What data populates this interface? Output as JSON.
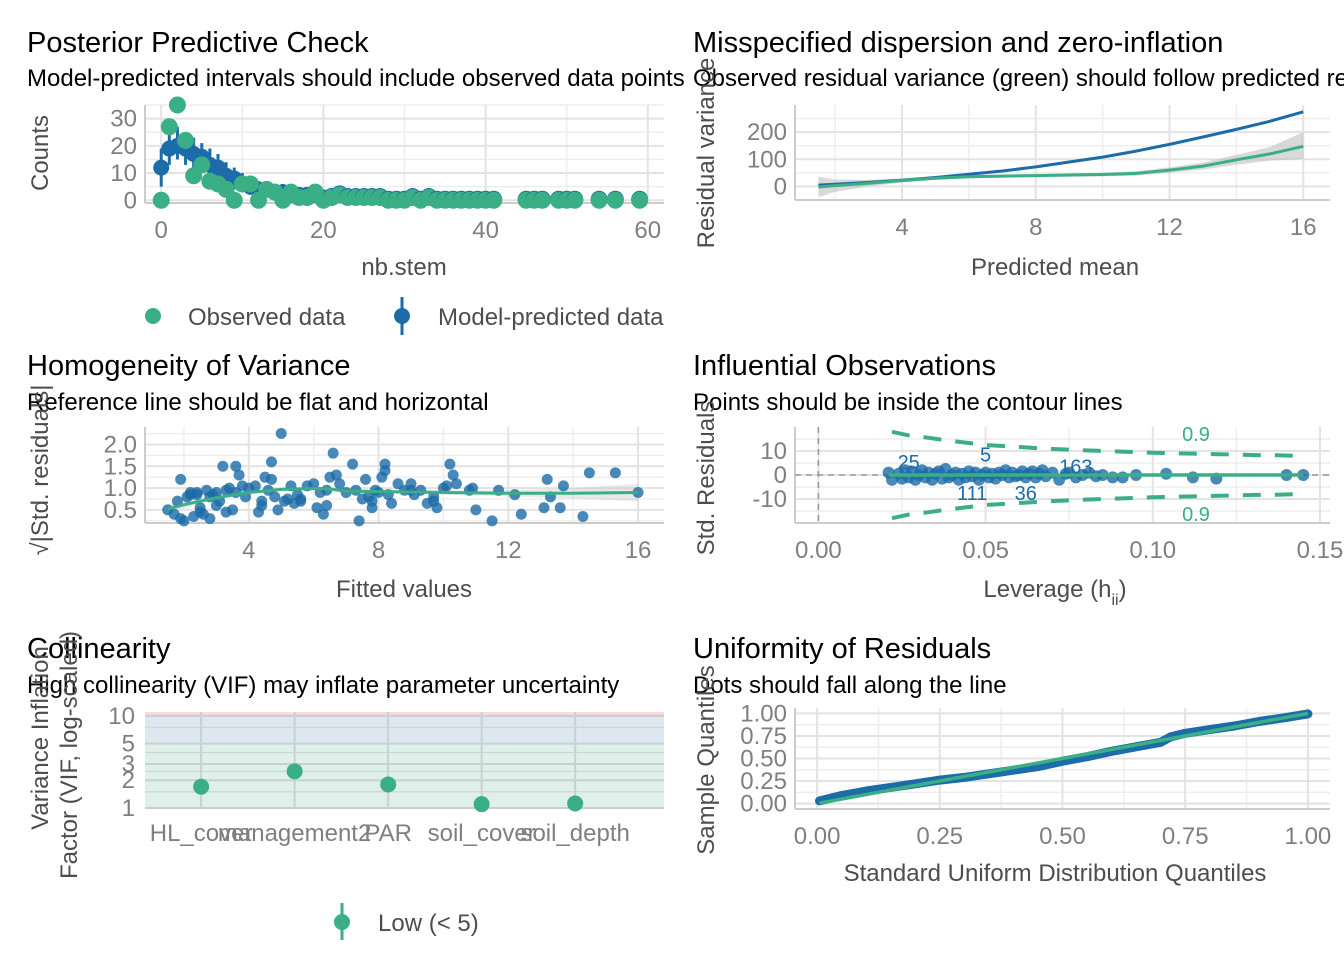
{
  "colors": {
    "green": "#3aaf85",
    "blue": "#1b6ca8",
    "band": "#bfbfbf",
    "vif_low": "#dff0e9",
    "vif_mod": "#dde7f0",
    "vif_high": "#f8dcdc"
  },
  "chart_data": [
    {
      "id": "ppc",
      "type": "scatter",
      "title": "Posterior Predictive Check",
      "subtitle": "Model-predicted intervals should include observed data points",
      "xlabel": "nb.stem",
      "ylabel": "Counts",
      "xlim": [
        -2,
        62
      ],
      "ylim": [
        -1,
        35
      ],
      "xticks": [
        0,
        20,
        40,
        60
      ],
      "yticks": [
        0,
        10,
        20,
        30
      ],
      "grid": true,
      "legend": {
        "position": "bottom",
        "entries": [
          "Observed data",
          "Model-predicted data"
        ]
      },
      "observed": {
        "x": [
          0,
          1,
          2,
          3,
          4,
          5,
          6,
          7,
          8,
          9,
          10,
          11,
          12,
          13,
          14,
          15,
          16,
          17,
          18,
          19,
          20,
          21,
          22,
          23,
          24,
          25,
          26,
          27,
          28,
          29,
          30,
          31,
          32,
          33,
          34,
          35,
          36,
          37,
          38,
          39,
          40,
          41,
          45,
          46,
          47,
          49,
          50,
          51,
          54,
          56,
          59
        ],
        "y": [
          0,
          27,
          35,
          22,
          9,
          13,
          7,
          6,
          4,
          0,
          6,
          6,
          0,
          4,
          3,
          0,
          3,
          1,
          1,
          3,
          0,
          1,
          2,
          1,
          1,
          1,
          1,
          1,
          0,
          0,
          0,
          1,
          0,
          1,
          0,
          0,
          0,
          0,
          0,
          0,
          0,
          0,
          0,
          0,
          0,
          0,
          0,
          0,
          0,
          0,
          0
        ]
      },
      "predicted": {
        "x": [
          0,
          1,
          2,
          3,
          4,
          5,
          6,
          7,
          8,
          9,
          10,
          11,
          12,
          13,
          14,
          15,
          16,
          17,
          18,
          19,
          20
        ],
        "y": [
          12,
          19,
          20,
          19,
          17,
          16,
          13,
          12,
          9,
          8,
          6,
          5,
          4,
          4,
          3,
          3,
          2,
          2,
          2,
          2,
          1
        ],
        "low": [
          5,
          13,
          15,
          13,
          12,
          11,
          8,
          8,
          5,
          4,
          3,
          2,
          2,
          1,
          1,
          1,
          0,
          0,
          0,
          0,
          0
        ],
        "high": [
          19,
          26,
          27,
          25,
          23,
          21,
          19,
          17,
          14,
          12,
          10,
          9,
          7,
          7,
          6,
          6,
          5,
          4,
          4,
          4,
          3
        ]
      }
    },
    {
      "id": "overdispersion",
      "type": "line",
      "title": "Misspecified dispersion and zero-inflation",
      "subtitle": "Observed residual variance (green) should follow predicted residual variance (blue)",
      "xlabel": "Predicted mean",
      "ylabel": "Residual variance",
      "xlim": [
        0.8,
        16.8
      ],
      "ylim": [
        -50,
        300
      ],
      "xticks": [
        4,
        8,
        12,
        16
      ],
      "yticks": [
        0,
        100,
        200
      ],
      "grid": true,
      "series": [
        {
          "name": "Predicted residual variance",
          "color": "blue",
          "x": [
            1.5,
            2,
            3,
            4,
            5,
            6,
            7,
            8,
            9,
            10,
            11,
            12,
            13,
            14,
            15,
            16
          ],
          "y": [
            5,
            8,
            15,
            23,
            33,
            45,
            57,
            72,
            90,
            108,
            130,
            155,
            182,
            210,
            240,
            275
          ]
        },
        {
          "name": "Observed residual variance",
          "color": "green",
          "x": [
            1.5,
            2,
            3,
            4,
            5,
            6,
            7,
            8,
            9,
            10,
            11,
            12,
            13,
            14,
            15,
            16
          ],
          "y": [
            -2,
            3,
            12,
            22,
            30,
            36,
            38,
            40,
            42,
            44,
            48,
            60,
            75,
            98,
            120,
            148
          ],
          "ci_low": [
            -40,
            -20,
            0,
            14,
            24,
            30,
            32,
            34,
            36,
            37,
            40,
            50,
            62,
            80,
            95,
            100
          ],
          "ci_high": [
            36,
            26,
            24,
            30,
            36,
            42,
            44,
            46,
            48,
            51,
            56,
            70,
            88,
            116,
            145,
            200
          ]
        }
      ]
    },
    {
      "id": "homogeneity",
      "type": "scatter",
      "title": "Homogeneity of Variance",
      "subtitle": "Reference line should be flat and horizontal",
      "xlabel": "Fitted values",
      "ylabel": "√|Std. residuals|",
      "xlim": [
        0.8,
        16.8
      ],
      "ylim": [
        0.2,
        2.4
      ],
      "xticks": [
        4,
        8,
        12,
        16
      ],
      "yticks": [
        0.5,
        1.0,
        1.5,
        2.0
      ],
      "ytick_labels": [
        "0.5",
        "1.0",
        "1.5",
        "2.0"
      ],
      "grid": true,
      "points": {
        "x": [
          1.5,
          1.7,
          1.8,
          1.9,
          2.0,
          2.1,
          2.2,
          2.3,
          2.4,
          2.5,
          2.6,
          2.7,
          2.8,
          2.9,
          3.0,
          3.1,
          3.2,
          3.3,
          3.4,
          3.5,
          3.6,
          3.7,
          3.8,
          3.9,
          4.0,
          4.2,
          4.3,
          4.4,
          4.5,
          4.6,
          4.7,
          4.8,
          4.9,
          5.0,
          5.1,
          5.3,
          5.4,
          5.5,
          5.6,
          5.8,
          6.0,
          6.1,
          6.2,
          6.3,
          6.4,
          6.5,
          6.6,
          6.8,
          7.0,
          7.2,
          7.3,
          7.4,
          7.6,
          7.7,
          7.8,
          7.9,
          8.0,
          8.1,
          8.2,
          8.3,
          8.4,
          8.6,
          8.8,
          9.0,
          9.1,
          9.3,
          9.5,
          9.7,
          9.8,
          10.0,
          10.1,
          10.2,
          10.3,
          10.4,
          10.8,
          10.9,
          11.0,
          11.5,
          11.7,
          12.2,
          12.4,
          13.1,
          13.2,
          13.3,
          13.6,
          13.7,
          14.3,
          14.5,
          15.3,
          16.0,
          2.2,
          2.8,
          3.0,
          3.6,
          4.4,
          4.7,
          5.6,
          6.7,
          7.8,
          8.2,
          9.0,
          9.7,
          2.5,
          1.9,
          2.4,
          3.3,
          5.2,
          6.4,
          7.5
        ],
        "y": [
          0.5,
          0.4,
          0.7,
          0.3,
          0.25,
          0.8,
          0.85,
          0.35,
          0.9,
          0.55,
          0.4,
          0.95,
          0.3,
          0.85,
          0.9,
          0.7,
          1.5,
          0.95,
          1.0,
          0.5,
          1.5,
          1.3,
          1.05,
          0.8,
          1.0,
          1.05,
          0.45,
          0.7,
          1.25,
          0.95,
          1.6,
          0.8,
          0.5,
          2.25,
          0.7,
          1.05,
          0.65,
          0.85,
          0.75,
          1.05,
          1.1,
          0.55,
          0.9,
          0.4,
          0.6,
          1.25,
          1.8,
          1.1,
          0.9,
          1.55,
          0.95,
          0.25,
          1.2,
          0.8,
          0.7,
          0.95,
          0.9,
          1.25,
          1.55,
          0.85,
          0.65,
          1.1,
          0.95,
          1.1,
          0.85,
          0.95,
          0.65,
          0.8,
          0.55,
          1.0,
          1.05,
          1.55,
          1.3,
          1.1,
          0.95,
          1.0,
          0.5,
          0.25,
          0.95,
          0.85,
          0.4,
          0.55,
          1.2,
          0.8,
          0.55,
          1.05,
          0.35,
          1.35,
          1.35,
          0.9,
          0.9,
          0.8,
          0.6,
          0.9,
          0.6,
          1.2,
          0.7,
          1.3,
          0.55,
          1.4,
          0.95,
          0.7,
          0.45,
          1.2,
          0.85,
          0.45,
          0.75,
          0.95,
          0.75
        ]
      },
      "smooth": {
        "x": [
          1.5,
          2,
          3,
          4,
          5,
          6,
          6.5,
          7,
          8,
          9,
          10,
          11,
          12,
          13,
          14,
          15,
          16
        ],
        "y": [
          0.52,
          0.62,
          0.78,
          0.9,
          0.97,
          0.99,
          0.98,
          0.93,
          0.92,
          0.91,
          0.9,
          0.89,
          0.88,
          0.88,
          0.88,
          0.89,
          0.9
        ],
        "ci_low": [
          0.4,
          0.55,
          0.72,
          0.85,
          0.93,
          0.95,
          0.94,
          0.88,
          0.87,
          0.86,
          0.85,
          0.83,
          0.81,
          0.79,
          0.76,
          0.73,
          0.7
        ],
        "ci_high": [
          0.64,
          0.69,
          0.84,
          0.95,
          1.01,
          1.03,
          1.02,
          0.98,
          0.97,
          0.96,
          0.95,
          0.95,
          0.95,
          0.97,
          1.0,
          1.05,
          1.1
        ]
      }
    },
    {
      "id": "influential",
      "type": "scatter",
      "title": "Influential Observations",
      "subtitle": "Points should be inside the contour lines",
      "xlabel": "Leverage (h",
      "xlabel_sub": "ii",
      "xlabel_end": ")",
      "ylabel": "Std. Residuals",
      "xlim": [
        -0.007,
        0.153
      ],
      "ylim": [
        -20,
        20
      ],
      "xticks": [
        0.0,
        0.05,
        0.1,
        0.15
      ],
      "xtick_labels": [
        "0.00",
        "0.05",
        "0.10",
        "0.15"
      ],
      "yticks": [
        -10,
        0,
        10
      ],
      "grid": true,
      "contour_label": "0.9",
      "contour": {
        "x": [
          0.022,
          0.027,
          0.033,
          0.038,
          0.044,
          0.05,
          0.056,
          0.062,
          0.068,
          0.075,
          0.081,
          0.087,
          0.094,
          0.1,
          0.106,
          0.112,
          0.118,
          0.125,
          0.131,
          0.137,
          0.143
        ],
        "upper": [
          18,
          16.5,
          15.5,
          14.5,
          13.5,
          12.5,
          12,
          11.5,
          11,
          10.6,
          10.2,
          9.9,
          9.6,
          9.3,
          9.1,
          8.9,
          8.7,
          8.5,
          8.3,
          8.2,
          8.0
        ]
      },
      "points": {
        "x": [
          0.021,
          0.022,
          0.024,
          0.025,
          0.026,
          0.027,
          0.028,
          0.029,
          0.03,
          0.031,
          0.032,
          0.033,
          0.034,
          0.035,
          0.036,
          0.037,
          0.038,
          0.039,
          0.04,
          0.041,
          0.042,
          0.043,
          0.044,
          0.045,
          0.046,
          0.047,
          0.048,
          0.049,
          0.05,
          0.051,
          0.052,
          0.053,
          0.054,
          0.055,
          0.056,
          0.057,
          0.058,
          0.059,
          0.06,
          0.061,
          0.062,
          0.063,
          0.064,
          0.065,
          0.066,
          0.067,
          0.068,
          0.07,
          0.072,
          0.074,
          0.075,
          0.077,
          0.079,
          0.081,
          0.083,
          0.085,
          0.088,
          0.091,
          0.095,
          0.104,
          0.112,
          0.119,
          0.14,
          0.145
        ],
        "y": [
          1,
          -2,
          0.5,
          -1.5,
          2,
          -1,
          1.5,
          -2,
          0,
          2,
          -1,
          1,
          -2,
          0.5,
          1.5,
          -1.5,
          2.5,
          -1,
          0,
          1,
          -2,
          0.5,
          -1,
          1.5,
          -0.5,
          1,
          -2,
          0,
          1,
          -1,
          0.5,
          -1.5,
          1,
          0,
          2,
          -1,
          1,
          -0.5,
          0,
          1.5,
          -1,
          0.5,
          1.5,
          -1,
          0.5,
          2,
          -0.5,
          1,
          -2,
          0.5,
          1,
          -1,
          0,
          1,
          -0.5,
          0,
          -1,
          -1,
          0,
          0.5,
          -1,
          -1.5,
          0,
          0
        ],
        "labels": [
          {
            "text": "25",
            "x": 0.027,
            "y": 5.5
          },
          {
            "text": "5",
            "x": 0.05,
            "y": 8.5
          },
          {
            "text": "163",
            "x": 0.077,
            "y": 3.5
          },
          {
            "text": "111",
            "x": 0.046,
            "y": -7.5
          },
          {
            "text": "36",
            "x": 0.062,
            "y": -7.5
          }
        ]
      },
      "smooth": {
        "x": [
          0.021,
          0.145
        ],
        "y": [
          0,
          0
        ]
      }
    },
    {
      "id": "collinearity",
      "type": "scatter",
      "title": "Collinearity",
      "subtitle": "High collinearity (VIF) may inflate parameter uncertainty",
      "xlabel": "",
      "ylabel": "Variance Inflation",
      "ylabel2": "Factor (VIF, log-scaled)",
      "ylim_log": [
        1,
        11
      ],
      "yticks": [
        1,
        2,
        3,
        5,
        10
      ],
      "ytick_labels": [
        "1",
        "2",
        "3",
        "5",
        "10"
      ],
      "categories": [
        "HL_cover",
        "management2",
        "PAR",
        "soil_cover",
        "soil_depth"
      ],
      "values": [
        1.7,
        2.5,
        1.8,
        1.1,
        1.12
      ],
      "ci_low": [
        1.55,
        2.25,
        1.62,
        1.0,
        1.0
      ],
      "ci_high": [
        1.88,
        2.85,
        2.0,
        1.25,
        1.28
      ],
      "zones": [
        {
          "name": "low",
          "from": 1,
          "to": 5
        },
        {
          "name": "moderate",
          "from": 5,
          "to": 10
        },
        {
          "name": "high",
          "from": 10,
          "to": 11
        }
      ],
      "grid": true,
      "legend": {
        "position": "bottom",
        "entries": [
          "Low (< 5)"
        ]
      }
    },
    {
      "id": "uniformity",
      "type": "scatter",
      "title": "Uniformity of Residuals",
      "subtitle": "Dots should fall along the line",
      "xlabel": "Standard Uniform Distribution Quantiles",
      "ylabel": "Sample Quantiles",
      "xlim": [
        -0.045,
        1.045
      ],
      "ylim": [
        -0.06,
        1.06
      ],
      "xticks": [
        0,
        0.25,
        0.5,
        0.75,
        1.0
      ],
      "xtick_labels": [
        "0.00",
        "0.25",
        "0.50",
        "0.75",
        "1.00"
      ],
      "yticks": [
        0,
        0.25,
        0.5,
        0.75,
        1.0
      ],
      "ytick_labels": [
        "0.00",
        "0.25",
        "0.50",
        "0.75",
        "1.00"
      ],
      "grid": true,
      "qq": {
        "x": [
          0.005,
          0.05,
          0.1,
          0.15,
          0.2,
          0.25,
          0.3,
          0.35,
          0.4,
          0.45,
          0.5,
          0.55,
          0.6,
          0.65,
          0.7,
          0.72,
          0.75,
          0.8,
          0.85,
          0.9,
          0.95,
          1.0
        ],
        "y": [
          0.03,
          0.09,
          0.14,
          0.18,
          0.22,
          0.26,
          0.29,
          0.33,
          0.37,
          0.41,
          0.47,
          0.52,
          0.58,
          0.63,
          0.68,
          0.74,
          0.78,
          0.82,
          0.86,
          0.91,
          0.95,
          0.995
        ]
      },
      "reference": {
        "x": [
          0.005,
          1.0
        ],
        "y": [
          0.005,
          1.0
        ]
      }
    }
  ]
}
